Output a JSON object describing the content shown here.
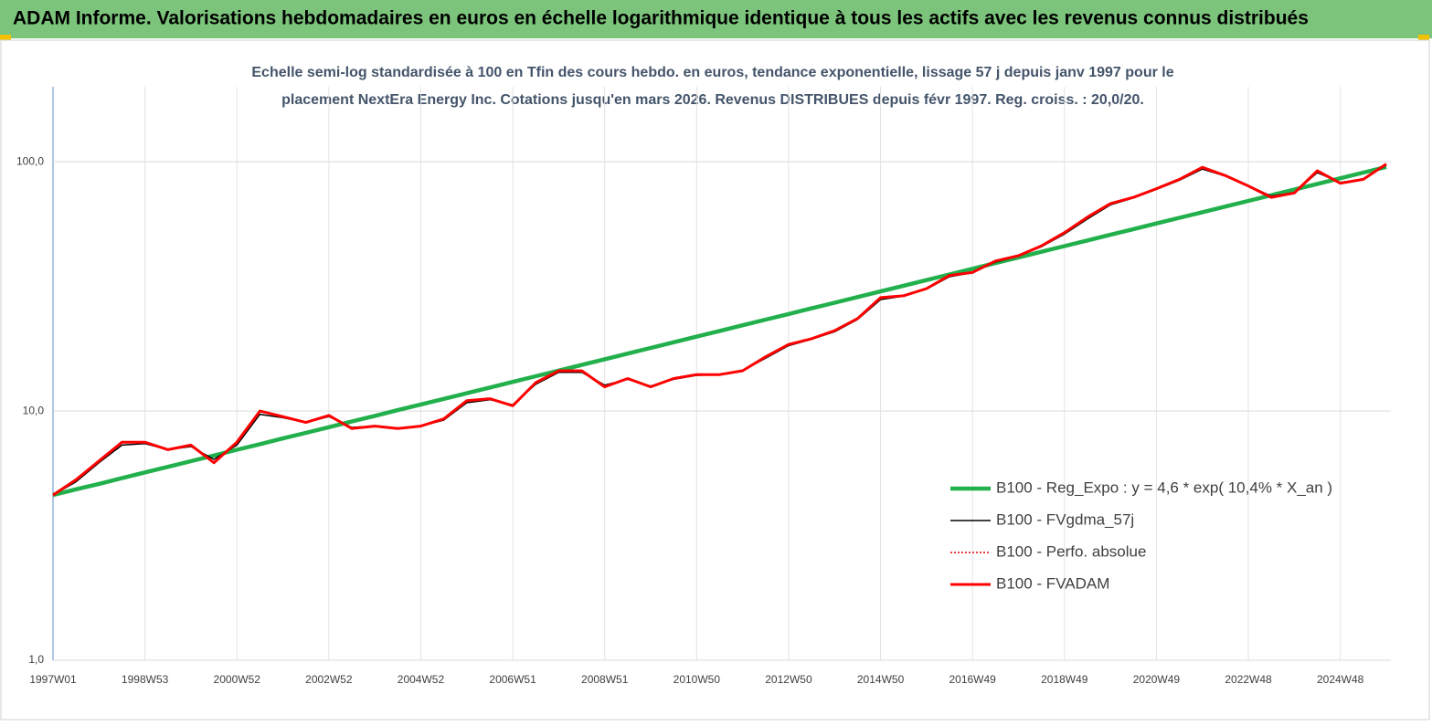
{
  "header": "ADAM Informe. Valorisations hebdomadaires en euros en échelle logarithmique identique à tous les actifs avec les revenus connus distribués",
  "chart_data": {
    "type": "line",
    "title": "Echelle semi-log standardisée à 100 en Tfin des cours hebdo. en euros, tendance exponentielle, lissage 57 j depuis janv 1997 pour le",
    "subtitle": "placement NextEra Energy Inc. Cotations jusqu'en mars 2026. Revenus DISTRIBUES depuis févr 1997. Reg. croiss. : 20,0/20.",
    "categories": [
      "1997W01",
      null,
      null,
      null,
      "1998W53",
      null,
      null,
      null,
      "2000W52",
      null,
      null,
      null,
      "2002W52",
      null,
      null,
      null,
      "2004W52",
      null,
      null,
      null,
      "2006W51",
      null,
      null,
      null,
      "2008W51",
      null,
      null,
      null,
      "2010W50",
      null,
      null,
      null,
      "2012W50",
      null,
      null,
      null,
      "2014W50",
      null,
      null,
      null,
      "2016W49",
      null,
      null,
      null,
      "2018W49",
      null,
      null,
      null,
      "2020W49",
      null,
      null,
      null,
      "2022W48",
      null,
      null,
      null,
      "2024W48",
      null,
      null
    ],
    "log_y": true,
    "ylim": [
      1,
      200
    ],
    "yticks": [
      {
        "value": 1,
        "label": "1,0"
      },
      {
        "value": 10,
        "label": "10,0"
      },
      {
        "value": 100,
        "label": "100,0"
      }
    ],
    "grid": true,
    "legend": "lower right",
    "series": [
      {
        "name": "B100 - Reg_Expo : y = 4,6 * exp( 10,4% *  X_an )",
        "color": "#21b04b",
        "style": "solid",
        "values": [
          4.6,
          4.85,
          5.1,
          5.38,
          5.67,
          5.97,
          6.29,
          6.63,
          6.99,
          7.36,
          7.76,
          8.17,
          8.61,
          9.08,
          9.56,
          10.08,
          10.62,
          11.19,
          11.79,
          12.42,
          13.09,
          13.79,
          14.53,
          15.31,
          16.13,
          17.0,
          17.91,
          18.87,
          19.88,
          20.95,
          22.07,
          23.26,
          24.5,
          25.82,
          27.2,
          28.66,
          30.2,
          31.82,
          33.53,
          35.33,
          37.22,
          39.22,
          41.32,
          43.54,
          45.88,
          48.34,
          50.93,
          53.67,
          56.54,
          59.58,
          62.77,
          66.14,
          69.69,
          73.43,
          77.36,
          81.51,
          85.89,
          90.5,
          95.35
        ]
      },
      {
        "name": "B100 - FVgdma_57j",
        "color": "#000000",
        "style": "thin",
        "values": [
          4.6,
          5.2,
          6.2,
          7.3,
          7.4,
          7.0,
          7.2,
          6.4,
          7.3,
          9.7,
          9.4,
          9.0,
          9.5,
          8.6,
          8.7,
          8.5,
          8.7,
          9.2,
          10.8,
          11.1,
          10.6,
          12.8,
          14.3,
          14.3,
          12.7,
          13.4,
          12.6,
          13.4,
          13.9,
          14.0,
          14.5,
          16.3,
          18.3,
          19.4,
          20.8,
          23.3,
          28.0,
          28.9,
          30.8,
          34.6,
          35.9,
          39.6,
          41.8,
          45.6,
          51.3,
          59.0,
          67.2,
          71.6,
          77.5,
          84.3,
          93.5,
          87.6,
          80.2,
          72.8,
          75.2,
          90.5,
          82.6,
          85.2,
          97.0
        ]
      },
      {
        "name": "B100 - Perfo. absolue",
        "color": "#e00000",
        "style": "dotted",
        "values": [
          4.6,
          5.3,
          6.3,
          7.5,
          7.5,
          7.0,
          7.3,
          6.2,
          7.5,
          10.0,
          9.5,
          9.0,
          9.6,
          8.5,
          8.7,
          8.5,
          8.7,
          9.3,
          11.0,
          11.2,
          10.5,
          13.0,
          14.5,
          14.5,
          12.5,
          13.5,
          12.5,
          13.5,
          14.0,
          14.0,
          14.5,
          16.5,
          18.5,
          19.5,
          21.0,
          23.5,
          28.5,
          29.0,
          31.0,
          35.0,
          36.0,
          40.0,
          42.0,
          46.0,
          52.0,
          60.0,
          68.0,
          72.0,
          78.0,
          85.0,
          95.0,
          88.0,
          80.0,
          72.0,
          75.0,
          92.0,
          82.0,
          85.0,
          98.0
        ]
      },
      {
        "name": "B100 - FVADAM",
        "color": "#ff0000",
        "style": "thick",
        "values": [
          4.6,
          5.3,
          6.3,
          7.5,
          7.5,
          7.0,
          7.3,
          6.2,
          7.5,
          10.0,
          9.5,
          9.0,
          9.6,
          8.5,
          8.7,
          8.5,
          8.7,
          9.3,
          11.0,
          11.2,
          10.5,
          13.0,
          14.5,
          14.5,
          12.5,
          13.5,
          12.5,
          13.5,
          14.0,
          14.0,
          14.5,
          16.5,
          18.5,
          19.5,
          21.0,
          23.5,
          28.5,
          29.0,
          31.0,
          35.0,
          36.0,
          40.0,
          42.0,
          46.0,
          52.0,
          60.0,
          68.0,
          72.0,
          78.0,
          85.0,
          95.0,
          88.0,
          80.0,
          72.0,
          75.0,
          92.0,
          82.0,
          85.0,
          98.0
        ]
      }
    ]
  }
}
